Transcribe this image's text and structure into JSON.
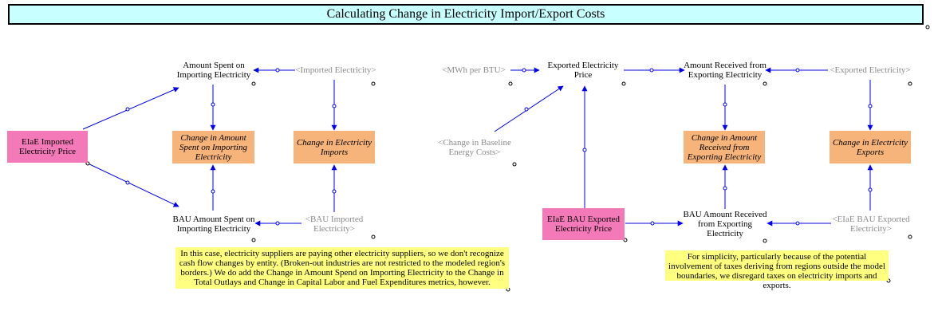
{
  "title": "Calculating Change in Electricity Import/Export Costs",
  "left": {
    "amount_spent": "Amount Spent on Importing Electricity",
    "imported_electricity": "<Imported Electricity>",
    "eiae_imported_price": "EIaE Imported Electricity Price",
    "change_amount_spent": "Change in Amount Spent on Importing Electricity",
    "change_imports": "Change in Electricity Imports",
    "bau_amount_spent": "BAU Amount Spent on Importing Electricity",
    "bau_imported": "<BAU Imported Electricity>",
    "note": "In this case, electricity suppliers are paying other electricity suppliers, so we don't recognize cash flow changes by entity.  (Broken-out industries are not restricted to the modeled region's borders.)  We do add the Change in Amount Spend on Importing Electricity to the Change in Total Outlays and Change in Capital Labor and Fuel Expenditures metrics, however."
  },
  "right": {
    "mwh_per_btu": "<MWh per BTU>",
    "exported_price": "Exported Electricity Price",
    "amount_received": "Amount Received from Exporting Electricity",
    "exported_electricity": "<Exported Electricity>",
    "change_baseline": "<Change in Baseline Energy Costs>",
    "change_amount_received": "Change in Amount Received from Exporting Electricity",
    "change_exports": "Change in Electricity Exports",
    "eiae_bau_exported_price": "EIaE BAU Exported Electricity Price",
    "bau_amount_received": "BAU Amount Received from Exporting Electricity",
    "eiae_bau_exported": "<EIaE BAU Exported Electricity>",
    "note": "For simplicity, particularly because of the potential involvement of taxes deriving from regions outside the model boundaries, we disregard taxes on electricity imports and exports."
  },
  "colors": {
    "title_bg": "#c8ffff",
    "orange": "#f7b47a",
    "pink": "#f479b8",
    "note_bg": "#ffff80",
    "arrow": "#0000ee",
    "ghost_text": "#8a8a8a"
  }
}
